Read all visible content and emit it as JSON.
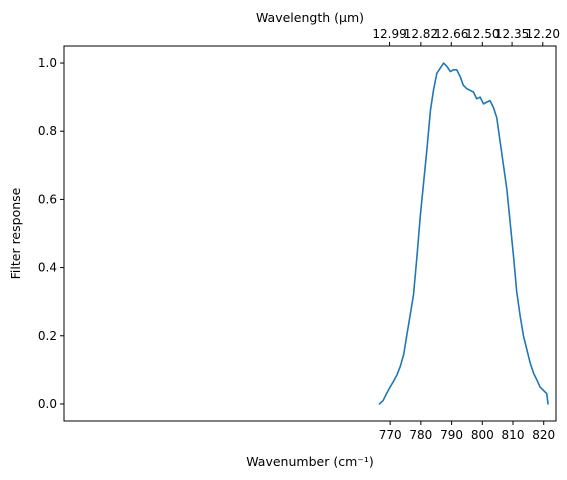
{
  "chart_data": {
    "type": "line",
    "xlabel": "Wavenumber (cm⁻¹)",
    "ylabel": "Filter response",
    "top_xlabel": "Wavelength (μm)",
    "xlim": [
      663.8,
      824.0
    ],
    "ylim": [
      -0.05,
      1.05
    ],
    "x_ticks": [
      770,
      780,
      790,
      800,
      810,
      820
    ],
    "y_ticks": [
      0.0,
      0.2,
      0.4,
      0.6,
      0.8,
      1.0
    ],
    "top_ticks": [
      {
        "label": "12.99",
        "wavenumber": 769.8
      },
      {
        "label": "12.82",
        "wavenumber": 780.0
      },
      {
        "label": "12.66",
        "wavenumber": 789.9
      },
      {
        "label": "12.50",
        "wavenumber": 800.0
      },
      {
        "label": "12.35",
        "wavenumber": 809.7
      },
      {
        "label": "12.20",
        "wavenumber": 819.7
      }
    ],
    "grid": false,
    "legend": "none",
    "line_color": "#1f77b4",
    "series": [
      {
        "x": [
          766.5,
          767.7,
          768.8,
          770.0,
          771.0,
          772.2,
          773.3,
          774.4,
          775.4,
          776.5,
          777.6,
          778.7,
          779.8,
          780.9,
          782.0,
          783.1,
          784.1,
          785.2,
          786.3,
          787.4,
          788.5,
          789.6,
          790.6,
          791.7,
          792.8,
          793.8,
          794.9,
          796.0,
          797.1,
          798.2,
          799.3,
          800.4,
          801.4,
          802.5,
          803.6,
          804.7,
          805.8,
          806.9,
          808.0,
          809.1,
          810.2,
          811.2,
          812.3,
          813.4,
          814.5,
          815.6,
          816.7,
          817.8,
          818.8,
          819.9,
          821.0,
          821.4
        ],
        "y": [
          0.0,
          0.01,
          0.03,
          0.05,
          0.065,
          0.085,
          0.11,
          0.145,
          0.2,
          0.26,
          0.32,
          0.43,
          0.55,
          0.65,
          0.75,
          0.86,
          0.92,
          0.97,
          0.985,
          1.0,
          0.99,
          0.975,
          0.98,
          0.98,
          0.96,
          0.935,
          0.925,
          0.92,
          0.915,
          0.895,
          0.9,
          0.88,
          0.885,
          0.89,
          0.87,
          0.84,
          0.77,
          0.7,
          0.63,
          0.53,
          0.43,
          0.33,
          0.26,
          0.2,
          0.16,
          0.12,
          0.09,
          0.07,
          0.05,
          0.04,
          0.03,
          0.0
        ]
      }
    ]
  }
}
